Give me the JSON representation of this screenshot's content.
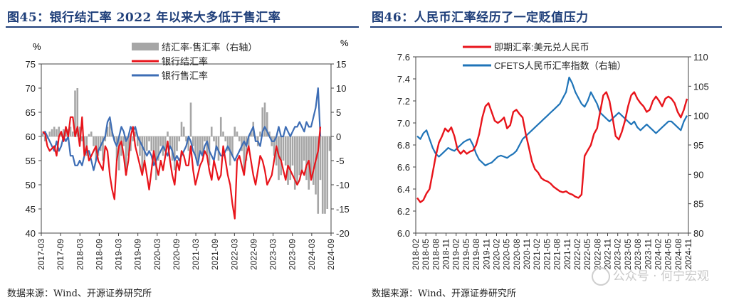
{
  "left": {
    "title": "图45：银行结汇率 2022 年以来大多低于售汇率",
    "source": "数据来源：Wind、开源证券研究所",
    "left_unit": "%",
    "right_unit": "%"
  },
  "right": {
    "title": "图46：人民币汇率经历了一定贬值压力",
    "source": "数据来源：Wind、开源证券研究所"
  },
  "watermark": "公众号 · 何宁宏观",
  "chart_data": [
    {
      "type": "bar+line",
      "title": "图45：银行结汇率 2022 年以来大多低于售汇率",
      "x_ticks": [
        "2017-03",
        "2017-09",
        "2018-03",
        "2018-09",
        "2019-03",
        "2019-09",
        "2020-03",
        "2020-09",
        "2021-03",
        "2021-09",
        "2022-03",
        "2022-09",
        "2023-03",
        "2023-09",
        "2024-03",
        "2024-09"
      ],
      "y_left": {
        "unit": "%",
        "min": 40,
        "max": 75,
        "ticks": [
          40,
          45,
          50,
          55,
          60,
          65,
          70,
          75
        ]
      },
      "y_right": {
        "unit": "%",
        "min": -20,
        "max": 15,
        "ticks": [
          -20,
          -15,
          -10,
          -5,
          0,
          5,
          10,
          15
        ]
      },
      "legend": [
        "结汇率-售汇率（右轴）",
        "银行结汇率",
        "银行售汇率"
      ],
      "colors": {
        "bar": "#a6a6a6",
        "settle": "#e8141b",
        "sale": "#3d6db5"
      },
      "series": [
        {
          "name": "结汇率-售汇率（右轴）",
          "axis": "right",
          "type": "bar",
          "values": [
            0.5,
            -1,
            -0.5,
            1,
            1.5,
            2,
            1.5,
            2,
            1,
            1.5,
            2,
            1.5,
            2,
            1,
            9.5,
            10,
            2,
            -1,
            -3,
            -4,
            0.5,
            1,
            -2,
            -5,
            -4,
            -3,
            -5,
            -1,
            2,
            3,
            1,
            -1,
            -5,
            -7,
            -4,
            -2,
            -8,
            -4,
            -3,
            -1,
            1,
            -2,
            -4,
            -7,
            -5,
            -3,
            -1,
            -3,
            -6,
            -9,
            -5,
            -2,
            -4,
            -3,
            1,
            -2,
            -5,
            -7,
            -3,
            -1,
            3,
            2,
            -1,
            -3,
            7,
            -2,
            -4,
            -5,
            -3,
            -4,
            -1,
            -4,
            -6,
            2,
            -1,
            -3,
            -5,
            4,
            1,
            -1,
            -3,
            -6,
            -4,
            2,
            1,
            -1,
            -3,
            -8,
            -5,
            -2,
            1,
            3,
            -1,
            -2,
            1,
            6,
            7,
            5,
            1,
            -2,
            -4,
            -6,
            -9,
            -8,
            -5,
            -6,
            -10,
            -9,
            -6,
            -11,
            -10,
            -8,
            -7,
            -5,
            -9,
            -11,
            -8,
            -10,
            -12,
            -16,
            -9,
            -16,
            -16,
            -15,
            -3
          ]
        },
        {
          "name": "银行结汇率",
          "axis": "left",
          "type": "line",
          "values": [
            61,
            60.5,
            58,
            57,
            57.5,
            58,
            56,
            60,
            61,
            59,
            62,
            60,
            64,
            64,
            60,
            62,
            58,
            64,
            56,
            58,
            55,
            56,
            57,
            58,
            55,
            54,
            53,
            58,
            57,
            52,
            49,
            47,
            55,
            58,
            59,
            56,
            52,
            55,
            60,
            62,
            58,
            56,
            54,
            52,
            55,
            52,
            49,
            53,
            57,
            54,
            52,
            55,
            53,
            56,
            59,
            55,
            52,
            50,
            55,
            53,
            57,
            56,
            54,
            54,
            58,
            53,
            50,
            52,
            54,
            55,
            57,
            56,
            53,
            51,
            55,
            53,
            51,
            52,
            58,
            55,
            52,
            50,
            46,
            43,
            55,
            56,
            54,
            52,
            56,
            58,
            55,
            52,
            50,
            53,
            56,
            55,
            53,
            50,
            51,
            52,
            55,
            58,
            56,
            55,
            53,
            51,
            54,
            53,
            52,
            51,
            50,
            51,
            53,
            52,
            54,
            55,
            51,
            53,
            55,
            57,
            62
          ]
        },
        {
          "name": "银行售汇率",
          "axis": "left",
          "type": "line",
          "values": [
            60.5,
            61,
            60,
            59,
            58,
            57,
            59,
            57,
            58,
            60,
            59,
            60,
            56,
            56,
            54,
            54,
            55,
            54,
            56,
            57,
            57,
            55,
            53,
            55,
            57,
            58,
            59,
            60,
            63,
            64,
            61,
            59,
            58,
            60,
            62,
            61,
            59,
            60,
            62,
            61,
            62,
            60,
            59,
            58,
            57,
            56,
            57,
            56,
            54,
            55,
            56,
            57,
            58,
            57,
            56,
            58,
            57,
            55,
            56,
            55,
            56,
            57,
            58,
            60,
            59,
            57,
            56,
            54,
            57,
            56,
            58,
            59,
            57,
            56,
            55,
            58,
            57,
            56,
            56,
            57,
            58,
            57,
            56,
            55,
            56,
            57,
            58,
            59,
            58,
            60,
            61,
            62,
            59,
            59,
            58,
            61,
            62,
            61,
            60,
            59,
            59,
            60,
            62,
            60,
            60,
            62,
            61,
            60,
            61,
            62,
            62,
            63,
            62,
            61,
            63,
            62,
            62,
            64,
            66,
            70,
            60
          ]
        }
      ]
    },
    {
      "type": "line",
      "title": "图46：人民币汇率经历了一定贬值压力",
      "x_ticks": [
        "2018-02",
        "2018-05",
        "2018-08",
        "2018-11",
        "2019-02",
        "2019-05",
        "2019-08",
        "2019-11",
        "2020-02",
        "2020-05",
        "2020-08",
        "2020-11",
        "2021-02",
        "2021-05",
        "2021-08",
        "2021-11",
        "2022-02",
        "2022-05",
        "2022-08",
        "2022-11",
        "2023-02",
        "2023-05",
        "2023-08",
        "2023-11",
        "2024-02",
        "2024-05",
        "2024-08",
        "2024-11"
      ],
      "y_left": {
        "min": 6.0,
        "max": 7.6,
        "ticks": [
          6.0,
          6.2,
          6.4,
          6.6,
          6.8,
          7.0,
          7.2,
          7.4,
          7.6
        ]
      },
      "y_right": {
        "min": 80,
        "max": 110,
        "ticks": [
          80,
          85,
          90,
          95,
          100,
          105,
          110
        ]
      },
      "legend": [
        "即期汇率:美元兑人民币",
        "CFETS人民币汇率指数（右轴）"
      ],
      "colors": {
        "spot": "#e8141b",
        "cfets": "#1f74b8"
      },
      "series": [
        {
          "name": "即期汇率:美元兑人民币",
          "axis": "left",
          "values": [
            6.32,
            6.28,
            6.3,
            6.36,
            6.4,
            6.55,
            6.7,
            6.82,
            6.88,
            6.95,
            6.92,
            6.96,
            6.88,
            6.76,
            6.72,
            6.75,
            6.72,
            6.74,
            6.75,
            6.8,
            6.9,
            7.05,
            7.15,
            7.18,
            7.1,
            7.02,
            7.0,
            7.02,
            7.05,
            6.95,
            6.98,
            7.1,
            7.12,
            7.08,
            7.05,
            6.9,
            6.78,
            6.65,
            6.58,
            6.55,
            6.5,
            6.48,
            6.47,
            6.45,
            6.42,
            6.4,
            6.38,
            6.37,
            6.38,
            6.36,
            6.35,
            6.33,
            6.32,
            6.35,
            6.7,
            6.75,
            6.8,
            6.9,
            6.95,
            7.1,
            7.25,
            7.28,
            7.2,
            7.05,
            6.88,
            6.85,
            6.92,
            7.02,
            7.15,
            7.25,
            7.28,
            7.22,
            7.18,
            7.15,
            7.1,
            7.12,
            7.2,
            7.24,
            7.2,
            7.15,
            7.22,
            7.24,
            7.22,
            7.18,
            7.1,
            7.05,
            7.12,
            7.22
          ]
        },
        {
          "name": "CFETS人民币汇率指数（右轴）",
          "axis": "right",
          "values": [
            96.5,
            96.0,
            97.0,
            97.5,
            96.0,
            94.5,
            93.5,
            93.0,
            93.5,
            94.0,
            94.5,
            94.2,
            94.0,
            94.5,
            95.0,
            95.5,
            95.8,
            96.0,
            95.0,
            93.5,
            92.5,
            92.0,
            91.5,
            91.8,
            92.0,
            92.5,
            93.0,
            93.2,
            93.0,
            92.8,
            93.2,
            93.5,
            94.0,
            95.0,
            96.0,
            96.5,
            97.0,
            97.5,
            98.0,
            98.5,
            99.0,
            99.5,
            100.0,
            100.5,
            101.0,
            101.5,
            102.0,
            103.0,
            104.0,
            106.5,
            105.5,
            104.0,
            103.0,
            102.0,
            101.5,
            102.5,
            104.0,
            103.0,
            102.0,
            100.5,
            100.0,
            99.5,
            99.0,
            99.5,
            100.0,
            100.5,
            100.0,
            99.5,
            99.0,
            98.5,
            99.0,
            98.0,
            97.5,
            98.0,
            98.5,
            98.0,
            97.5,
            97.0,
            97.5,
            98.0,
            98.5,
            99.0,
            99.0,
            98.5,
            98.0,
            97.5,
            99.0,
            100.0
          ]
        }
      ]
    }
  ]
}
